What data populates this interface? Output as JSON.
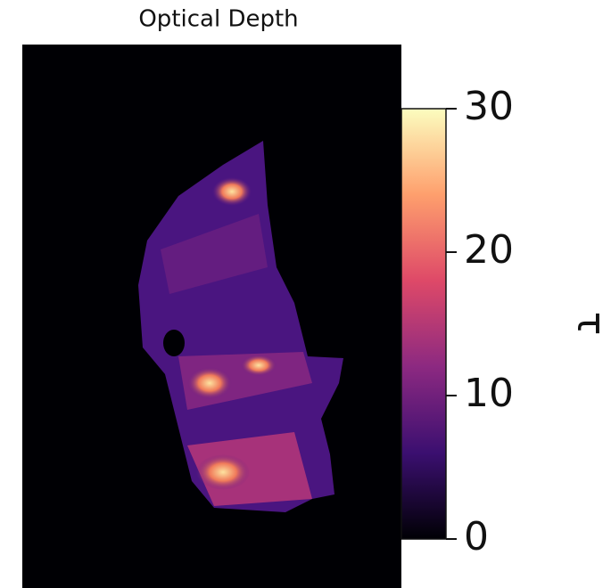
{
  "chart_data": {
    "type": "image",
    "title": "Optical Depth",
    "colorbar_label": "τ",
    "clim": [
      0,
      30
    ],
    "cticks": [
      0,
      10,
      20,
      30
    ],
    "colormap": [
      "#000004",
      "#3b0f70",
      "#8c2981",
      "#de4968",
      "#fe9f6d",
      "#fcfdbf"
    ]
  }
}
